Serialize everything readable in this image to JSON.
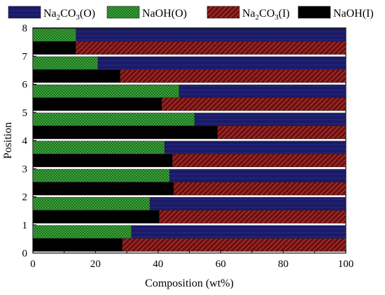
{
  "chart_data": {
    "type": "bar",
    "orientation": "horizontal",
    "stacked_pairs": true,
    "xlabel": "Composition (wt%)",
    "ylabel": "Position",
    "xlim": [
      0,
      100
    ],
    "ylim": [
      0,
      8
    ],
    "x_ticks": [
      0,
      20,
      40,
      60,
      80,
      100
    ],
    "y_ticks": [
      0,
      1,
      2,
      3,
      4,
      5,
      6,
      7,
      8
    ],
    "legend_position": "top",
    "categories": [
      "1",
      "2",
      "3",
      "4",
      "5",
      "6",
      "7",
      "8"
    ],
    "series": [
      {
        "name": "Na2CO3(O)",
        "display_base": "Na",
        "display_sub1": "2",
        "display_mid": "CO",
        "display_sub2": "3",
        "display_tail": "(O)",
        "group": "O",
        "color": "#1a1a66",
        "pattern": "navy",
        "values": [
          68.5,
          62.6,
          56.3,
          57.9,
          48.3,
          53.3,
          79.2,
          86.2
        ]
      },
      {
        "name": "NaOH(O)",
        "display_base": "NaOH(O)",
        "group": "O",
        "color": "#2e8b2e",
        "pattern": "green",
        "values": [
          31.5,
          37.4,
          43.7,
          42.1,
          51.7,
          46.7,
          20.8,
          13.8
        ]
      },
      {
        "name": "Na2CO3(I)",
        "display_base": "Na",
        "display_sub1": "2",
        "display_mid": "CO",
        "display_sub2": "3",
        "display_tail": "(I)",
        "group": "I",
        "color": "#8b1a1a",
        "pattern": "red",
        "values": [
          71.4,
          59.6,
          55.0,
          55.4,
          41.0,
          58.8,
          72.1,
          86.3
        ]
      },
      {
        "name": "NaOH(I)",
        "display_base": "NaOH(I)",
        "group": "I",
        "color": "#000000",
        "pattern": "black",
        "values": [
          28.6,
          40.4,
          45.0,
          44.6,
          59.0,
          41.2,
          27.9,
          13.7
        ]
      }
    ]
  }
}
